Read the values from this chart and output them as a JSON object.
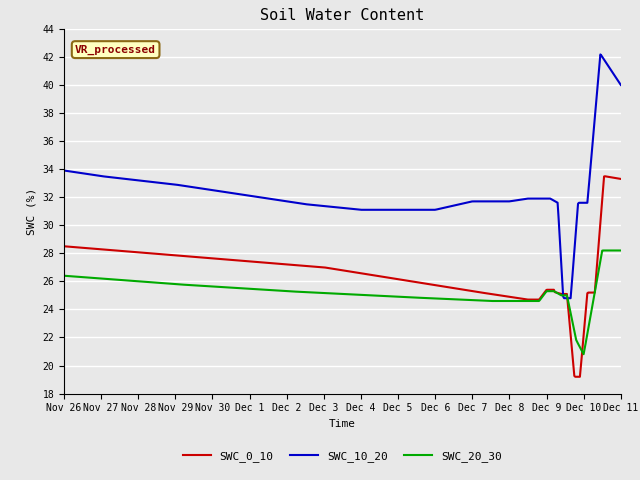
{
  "title": "Soil Water Content",
  "xlabel": "Time",
  "ylabel": "SWC (%)",
  "ylim": [
    18,
    44
  ],
  "yticks": [
    18,
    20,
    22,
    24,
    26,
    28,
    30,
    32,
    34,
    36,
    38,
    40,
    42,
    44
  ],
  "annotation_text": "VR_processed",
  "annotation_color": "#8B0000",
  "annotation_bbox_facecolor": "#FFFFC0",
  "annotation_bbox_edgecolor": "#8B6914",
  "series": {
    "SWC_0_10": {
      "color": "#CC0000",
      "linewidth": 1.5
    },
    "SWC_10_20": {
      "color": "#0000CC",
      "linewidth": 1.5
    },
    "SWC_20_30": {
      "color": "#00AA00",
      "linewidth": 1.5
    }
  },
  "x_labels": [
    "Nov 26",
    "Nov 27",
    "Nov 28",
    "Nov 29",
    "Nov 30",
    "Dec 1",
    "Dec 2",
    "Dec 3",
    "Dec 4",
    "Dec 5",
    "Dec 6",
    "Dec 7",
    "Dec 8",
    "Dec 9",
    "Dec 10",
    "Dec 11"
  ],
  "background_color": "#E8E8E8",
  "plot_bg_color": "#E8E8E8",
  "grid_color": "white",
  "font_family": "monospace",
  "title_fontsize": 11,
  "tick_fontsize": 7,
  "label_fontsize": 8,
  "legend_fontsize": 8
}
